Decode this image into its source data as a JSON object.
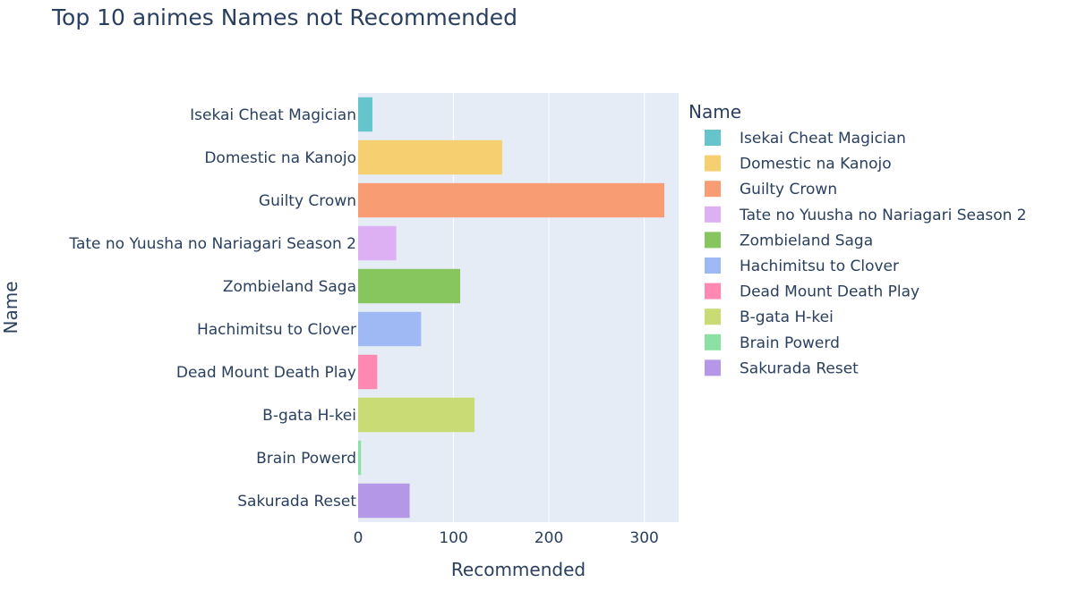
{
  "chart_data": {
    "type": "bar",
    "orientation": "horizontal",
    "title": "Top 10 animes Names not Recommended",
    "xlabel": "Recommended",
    "ylabel": "Name",
    "xlim": [
      0,
      336
    ],
    "xticks": [
      0,
      100,
      200,
      300
    ],
    "grid": true,
    "legend_title": "Name",
    "legend_position": "right",
    "categories": [
      "Isekai Cheat Magician",
      "Domestic na Kanojo",
      "Guilty Crown",
      "Tate no Yuusha no Nariagari Season 2",
      "Zombieland Saga",
      "Hachimitsu to Clover",
      "Dead Mount Death Play",
      "B-gata H-kei",
      "Brain Powerd",
      "Sakurada Reset"
    ],
    "values": [
      15,
      151,
      321,
      40,
      107,
      66,
      20,
      122,
      3,
      54
    ],
    "colors": [
      "#66c5cc",
      "#f6cf71",
      "#f89c74",
      "#dcb0f2",
      "#87c55f",
      "#9eb9f3",
      "#fe88b1",
      "#c9db74",
      "#8be0a4",
      "#b497e7"
    ],
    "plot_bg": "#e5ecf6"
  }
}
